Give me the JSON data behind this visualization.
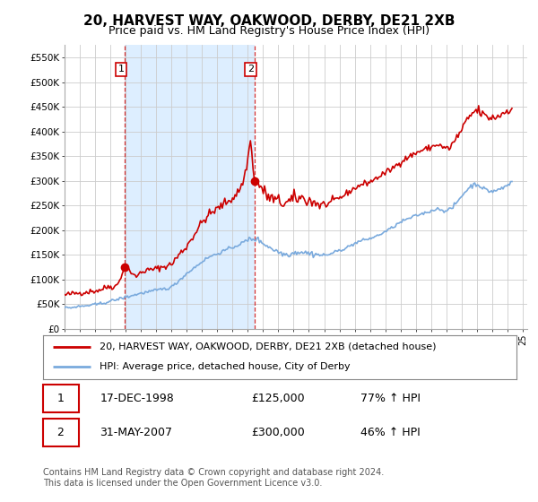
{
  "title": "20, HARVEST WAY, OAKWOOD, DERBY, DE21 2XB",
  "subtitle": "Price paid vs. HM Land Registry's House Price Index (HPI)",
  "title_fontsize": 11,
  "subtitle_fontsize": 9,
  "ylabel_ticks": [
    "£0",
    "£50K",
    "£100K",
    "£150K",
    "£200K",
    "£250K",
    "£300K",
    "£350K",
    "£400K",
    "£450K",
    "£500K",
    "£550K"
  ],
  "ytick_values": [
    0,
    50000,
    100000,
    150000,
    200000,
    250000,
    300000,
    350000,
    400000,
    450000,
    500000,
    550000
  ],
  "ylim": [
    0,
    575000
  ],
  "red_line_color": "#cc0000",
  "blue_line_color": "#7aaadd",
  "grid_color": "#cccccc",
  "background_color": "#ffffff",
  "shade_color": "#ddeeff",
  "legend_label_red": "20, HARVEST WAY, OAKWOOD, DERBY, DE21 2XB (detached house)",
  "legend_label_blue": "HPI: Average price, detached house, City of Derby",
  "transaction1_date": "17-DEC-1998",
  "transaction1_price": "£125,000",
  "transaction1_hpi": "77% ↑ HPI",
  "transaction2_date": "31-MAY-2007",
  "transaction2_price": "£300,000",
  "transaction2_hpi": "46% ↑ HPI",
  "footer": "Contains HM Land Registry data © Crown copyright and database right 2024.\nThis data is licensed under the Open Government Licence v3.0.",
  "point1_x": 1998.96,
  "point1_y": 125000,
  "point2_x": 2007.42,
  "point2_y": 300000,
  "vline1_x": 1998.96,
  "vline2_x": 2007.42,
  "xlim_left": 1995.0,
  "xlim_right": 2025.3
}
